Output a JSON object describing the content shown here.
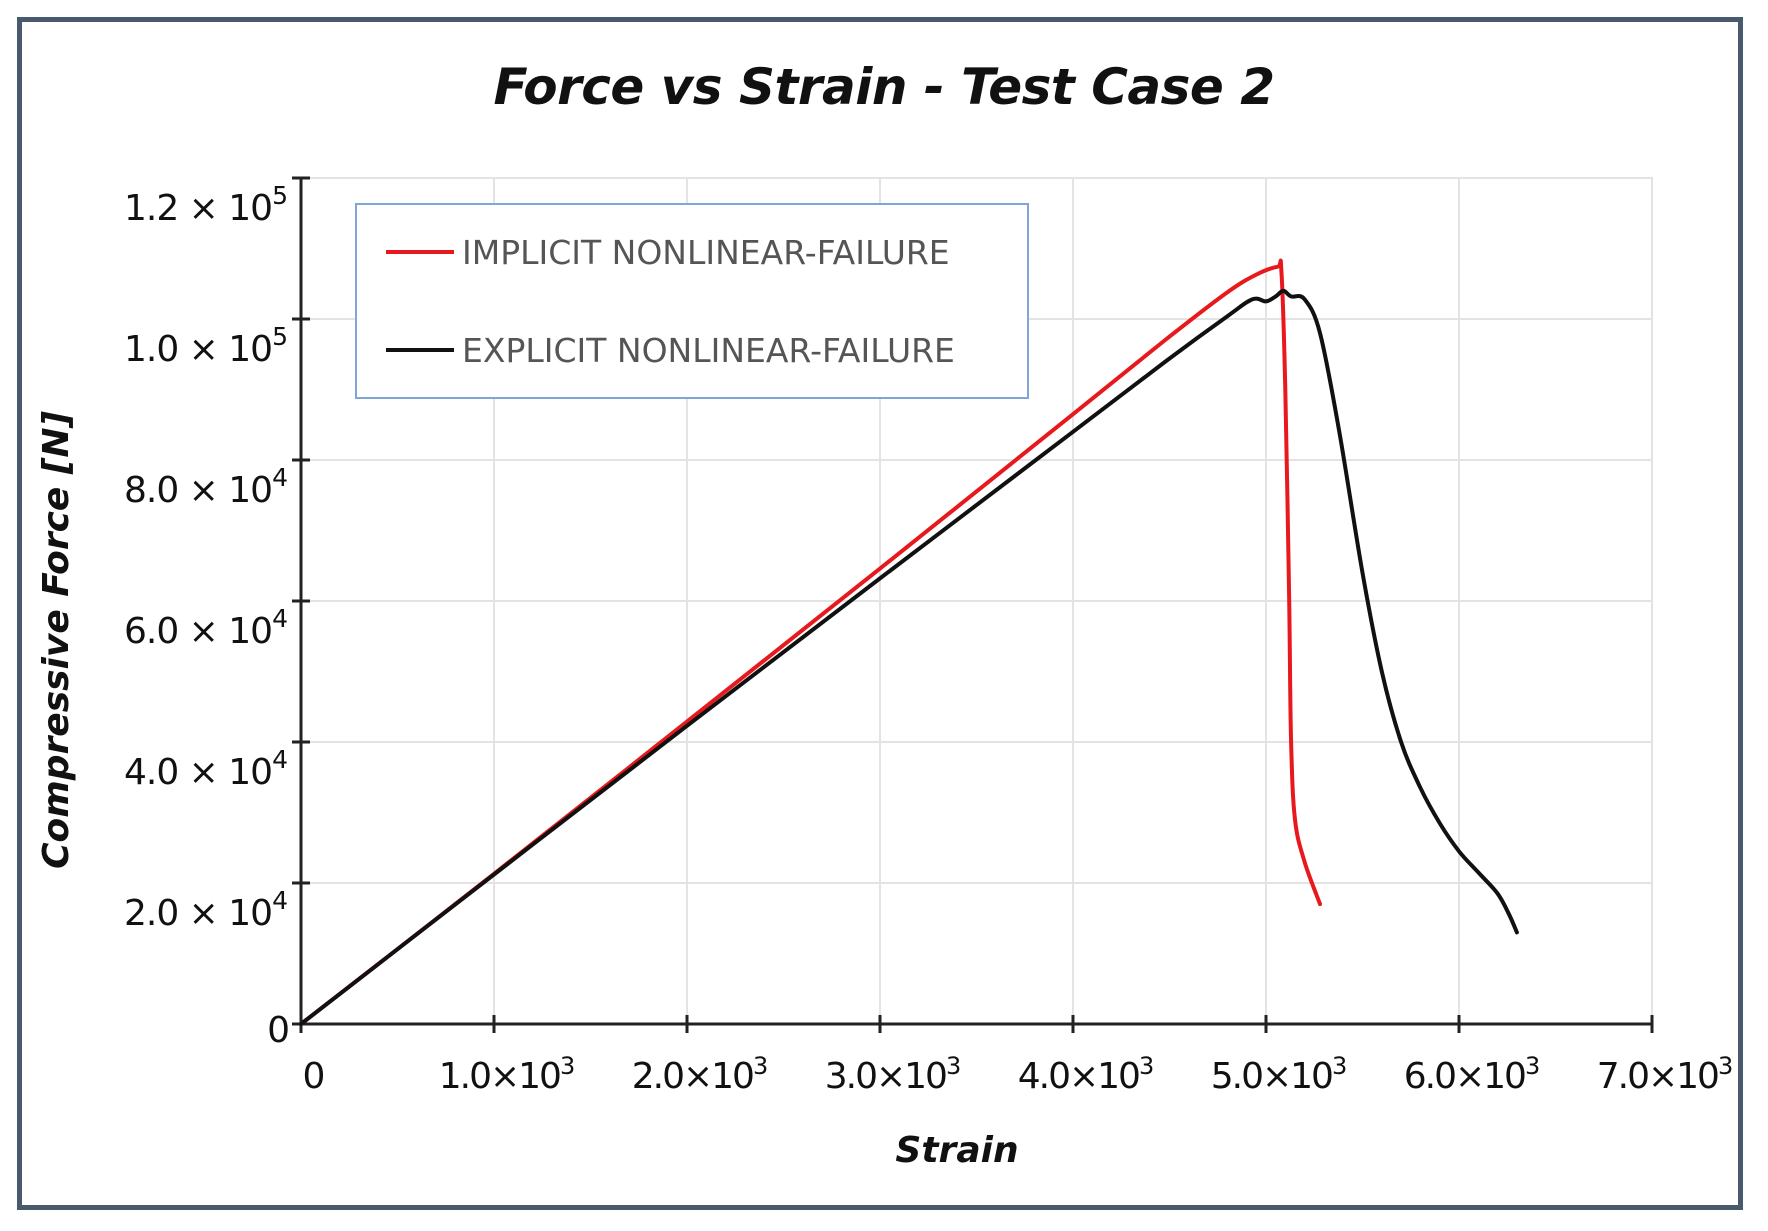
{
  "chart_data": {
    "type": "line",
    "title": "Force vs Strain - Test Case 2",
    "xlabel": "Strain",
    "ylabel": "Compressive Force [N]",
    "xlim": [
      0,
      7000
    ],
    "ylim": [
      0,
      120000
    ],
    "x_ticks": [
      {
        "value": 0,
        "mantissa": "0",
        "exponent": ""
      },
      {
        "value": 1000,
        "mantissa": "1.0×10",
        "exponent": "3"
      },
      {
        "value": 2000,
        "mantissa": "2.0×10",
        "exponent": "3"
      },
      {
        "value": 3000,
        "mantissa": "3.0×10",
        "exponent": "3"
      },
      {
        "value": 4000,
        "mantissa": "4.0×10",
        "exponent": "3"
      },
      {
        "value": 5000,
        "mantissa": "5.0×10",
        "exponent": "3"
      },
      {
        "value": 6000,
        "mantissa": "6.0×10",
        "exponent": "3"
      },
      {
        "value": 7000,
        "mantissa": "7.0×10",
        "exponent": "3"
      }
    ],
    "y_ticks": [
      {
        "value": 0,
        "mantissa": "0",
        "exponent": ""
      },
      {
        "value": 20000,
        "mantissa": "2.0 × 10",
        "exponent": "4"
      },
      {
        "value": 40000,
        "mantissa": "4.0 × 10",
        "exponent": "4"
      },
      {
        "value": 60000,
        "mantissa": "6.0 × 10",
        "exponent": "4"
      },
      {
        "value": 80000,
        "mantissa": "8.0 × 10",
        "exponent": "4"
      },
      {
        "value": 100000,
        "mantissa": "1.0 × 10",
        "exponent": "5"
      },
      {
        "value": 120000,
        "mantissa": "1.2 × 10",
        "exponent": "5"
      }
    ],
    "grid": true,
    "legend_position": "top-left",
    "series": [
      {
        "name": "IMPLICIT NONLINEAR-FAILURE",
        "color": "#e8191c",
        "points": [
          [
            0,
            0
          ],
          [
            1000,
            21300
          ],
          [
            2000,
            42900
          ],
          [
            3000,
            64600
          ],
          [
            4000,
            86500
          ],
          [
            4500,
            97500
          ],
          [
            4800,
            103800
          ],
          [
            4950,
            106300
          ],
          [
            5060,
            107400
          ],
          [
            5080,
            106800
          ],
          [
            5100,
            90000
          ],
          [
            5120,
            60000
          ],
          [
            5130,
            40000
          ],
          [
            5150,
            29000
          ],
          [
            5200,
            23000
          ],
          [
            5280,
            17000
          ]
        ]
      },
      {
        "name": "EXPLICIT NONLINEAR-FAILURE",
        "color": "#111111",
        "points": [
          [
            0,
            0
          ],
          [
            1000,
            21200
          ],
          [
            2000,
            42300
          ],
          [
            3000,
            63200
          ],
          [
            4000,
            84000
          ],
          [
            4500,
            94400
          ],
          [
            4800,
            100400
          ],
          [
            4930,
            102800
          ],
          [
            5000,
            102500
          ],
          [
            5050,
            103200
          ],
          [
            5090,
            104000
          ],
          [
            5130,
            103200
          ],
          [
            5200,
            102800
          ],
          [
            5280,
            98000
          ],
          [
            5380,
            84000
          ],
          [
            5500,
            64000
          ],
          [
            5600,
            50000
          ],
          [
            5700,
            40000
          ],
          [
            5800,
            33500
          ],
          [
            5900,
            28500
          ],
          [
            6000,
            24500
          ],
          [
            6100,
            21500
          ],
          [
            6200,
            18500
          ],
          [
            6260,
            15500
          ],
          [
            6300,
            13000
          ]
        ]
      }
    ]
  }
}
